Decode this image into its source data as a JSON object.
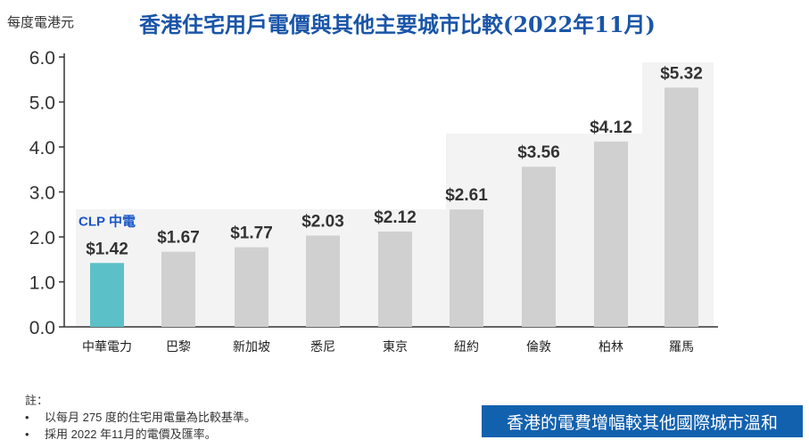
{
  "chart_data": {
    "type": "bar",
    "title": "香港住宅用戶電價與其他主要城市比較(2022年11月)",
    "ylabel": "每度電港元",
    "ylim": [
      0,
      6
    ],
    "yticks": [
      "0.0",
      "1.0",
      "2.0",
      "3.0",
      "4.0",
      "5.0",
      "6.0"
    ],
    "categories": [
      "中華電力",
      "巴黎",
      "新加坡",
      "悉尼",
      "東京",
      "紐約",
      "倫敦",
      "柏林",
      "羅馬"
    ],
    "values": [
      1.42,
      1.67,
      1.77,
      2.03,
      2.12,
      2.61,
      3.56,
      4.12,
      5.32
    ],
    "data_labels": [
      "$1.42",
      "$1.67",
      "$1.77",
      "$2.03",
      "$2.12",
      "$2.61",
      "$3.56",
      "$4.12",
      "$5.32"
    ],
    "colors": {
      "highlight": "#5bc0c8",
      "default": "#d0d0d0"
    },
    "highlight_index": 0,
    "logo_text": "CLP 中電",
    "grid": false
  },
  "notes": {
    "heading": "註：",
    "items": [
      "以每月 275 度的住宅用電量為比較基準。",
      "採用 2022 年11月的電價及匯率。"
    ]
  },
  "banner": "香港的電費增幅較其他國際城市溫和"
}
